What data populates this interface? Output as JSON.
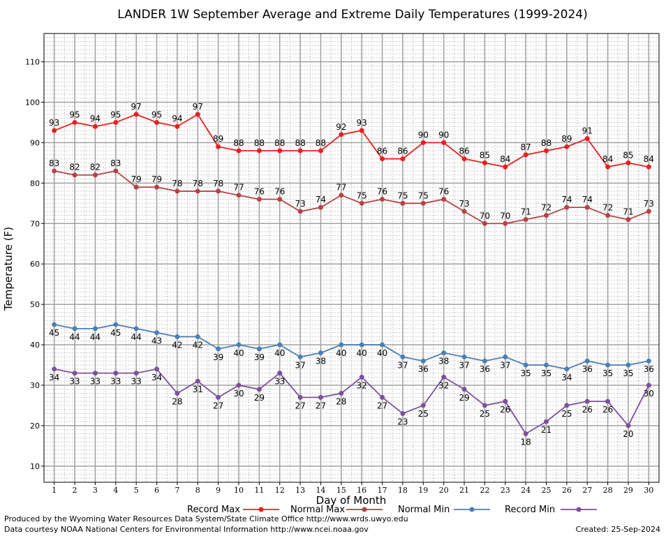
{
  "chart_data": {
    "type": "line",
    "title": "LANDER 1W September Average and Extreme Daily Temperatures (1999-2024)",
    "xlabel": "Day of Month",
    "ylabel": "Temperature (F)",
    "xlim": [
      0.5,
      30.5
    ],
    "ylim": [
      6,
      117
    ],
    "yticks": [
      10,
      20,
      30,
      40,
      50,
      60,
      70,
      80,
      90,
      100,
      110
    ],
    "x": [
      1,
      2,
      3,
      4,
      5,
      6,
      7,
      8,
      9,
      10,
      11,
      12,
      13,
      14,
      15,
      16,
      17,
      18,
      19,
      20,
      21,
      22,
      23,
      24,
      25,
      26,
      27,
      28,
      29,
      30
    ],
    "grid": true,
    "legend_position": "bottom",
    "series": [
      {
        "name": "Record Max",
        "color": "#e8201f",
        "values": [
          93,
          95,
          94,
          95,
          97,
          95,
          94,
          97,
          89,
          88,
          88,
          88,
          88,
          88,
          92,
          93,
          86,
          86,
          90,
          90,
          86,
          85,
          84,
          87,
          88,
          89,
          91,
          84,
          85,
          84
        ]
      },
      {
        "name": "Normal Max",
        "color": "#b54346",
        "values": [
          83,
          82,
          82,
          83,
          79,
          79,
          78,
          78,
          78,
          77,
          76,
          76,
          73,
          74,
          77,
          75,
          76,
          75,
          75,
          76,
          73,
          70,
          70,
          71,
          72,
          74,
          74,
          72,
          71,
          73
        ]
      },
      {
        "name": "Normal Min",
        "color": "#4a7fb5",
        "values": [
          45,
          44,
          44,
          45,
          44,
          43,
          42,
          42,
          39,
          40,
          39,
          40,
          37,
          38,
          40,
          40,
          40,
          37,
          36,
          38,
          37,
          36,
          37,
          35,
          35,
          34,
          36,
          35,
          35,
          36
        ]
      },
      {
        "name": "Record Min",
        "color": "#7b519c",
        "values": [
          34,
          33,
          33,
          33,
          33,
          34,
          28,
          31,
          27,
          30,
          29,
          33,
          27,
          27,
          28,
          32,
          27,
          23,
          25,
          32,
          29,
          25,
          26,
          18,
          21,
          25,
          26,
          26,
          20,
          30
        ]
      }
    ]
  },
  "footer": {
    "line1": "Produced by the Wyoming Water Resources Data System/State Climate Office http://www.wrds.uwyo.edu",
    "line2": "Data courtesy NOAA National Centers for Environmental Information http://www.ncei.noaa.gov",
    "created": "Created:  25-Sep-2024"
  }
}
